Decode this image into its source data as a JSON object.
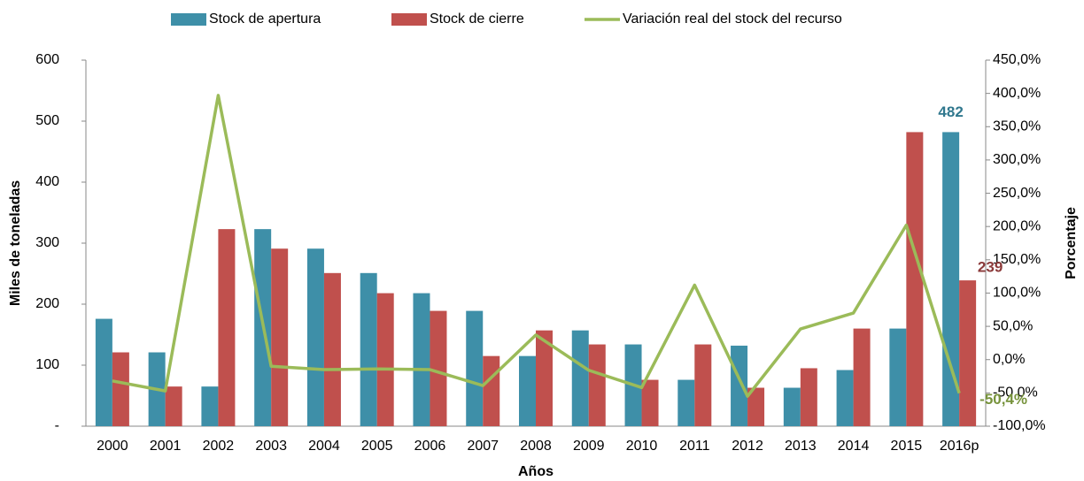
{
  "chart_data": {
    "type": "bar_line",
    "xlabel": "Años",
    "ylabel": "Miles de toneladas",
    "y2label": "Porcentaje",
    "categories": [
      "2000",
      "2001",
      "2002",
      "2003",
      "2004",
      "2005",
      "2006",
      "2007",
      "2008",
      "2009",
      "2010",
      "2011",
      "2012",
      "2013",
      "2014",
      "2015",
      "2016p"
    ],
    "series": [
      {
        "name": "Stock de apertura",
        "color": "#3e8fa8",
        "type": "bar",
        "values": [
          176,
          121,
          65,
          323,
          291,
          251,
          218,
          189,
          115,
          157,
          134,
          76,
          132,
          63,
          92,
          160,
          482
        ],
        "value_labels": [
          null,
          null,
          null,
          null,
          null,
          null,
          null,
          null,
          null,
          null,
          null,
          null,
          null,
          null,
          null,
          null,
          "482"
        ],
        "label_color": "#31788e"
      },
      {
        "name": "Stock de cierre",
        "color": "#c0504d",
        "type": "bar",
        "values": [
          121,
          65,
          323,
          291,
          251,
          218,
          189,
          115,
          157,
          134,
          76,
          134,
          63,
          95,
          160,
          482,
          239
        ],
        "value_labels": [
          null,
          null,
          null,
          null,
          null,
          null,
          null,
          null,
          null,
          null,
          null,
          null,
          null,
          null,
          null,
          null,
          "239"
        ],
        "label_color": "#8b3a3a"
      },
      {
        "name": "Variación real del stock del recurso",
        "color": "#9bbb59",
        "type": "line",
        "axis": "y2",
        "values": [
          -32,
          -47,
          397,
          -10,
          -15,
          -14,
          -15,
          -39,
          37,
          -16,
          -42,
          112,
          -55,
          46,
          70,
          202,
          -50.4
        ],
        "value_labels": [
          null,
          null,
          null,
          null,
          null,
          null,
          null,
          null,
          null,
          null,
          null,
          null,
          null,
          null,
          null,
          null,
          "-50,4%"
        ],
        "label_color": "#77933c"
      }
    ],
    "ylim": [
      0,
      600
    ],
    "yticks": [
      {
        "value": 0,
        "label": "-"
      },
      100,
      200,
      300,
      400,
      500,
      600
    ],
    "y2lim": [
      -100,
      450
    ],
    "y2ticks": [
      {
        "value": -100,
        "label": "-100,0%"
      },
      {
        "value": -50,
        "label": "-50,0%"
      },
      {
        "value": 0,
        "label": "0,0%"
      },
      {
        "value": 50,
        "label": "50,0%"
      },
      {
        "value": 100,
        "label": "100,0%"
      },
      {
        "value": 150,
        "label": "150,0%"
      },
      {
        "value": 200,
        "label": "200,0%"
      },
      {
        "value": 250,
        "label": "250,0%"
      },
      {
        "value": 300,
        "label": "300,0%"
      },
      {
        "value": 350,
        "label": "350,0%"
      },
      {
        "value": 400,
        "label": "400,0%"
      },
      {
        "value": 450,
        "label": "450,0%"
      }
    ],
    "legend": "top",
    "grid": false
  }
}
